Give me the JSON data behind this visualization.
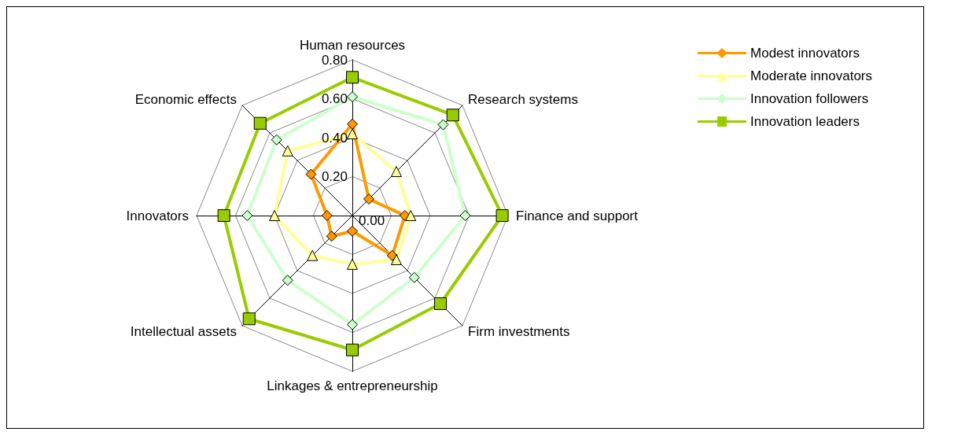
{
  "chart_data": {
    "type": "radar",
    "categories": [
      "Human resources",
      "Research systems",
      "Finance and support",
      "Firm investments",
      "Linkages & entrepreneurship",
      "Intellectual assets",
      "Innovators",
      "Economic effects"
    ],
    "ylim": [
      0,
      0.8
    ],
    "yticks": [
      {
        "value": 0,
        "label": "0.00"
      },
      {
        "value": 0.2,
        "label": "0.20"
      },
      {
        "value": 0.4,
        "label": "0.40"
      },
      {
        "value": 0.6,
        "label": "0.60"
      },
      {
        "value": 0.8,
        "label": "0.80"
      }
    ],
    "legend": "right",
    "grid": true,
    "series": [
      {
        "name": "Modest innovators",
        "color": "#ff9900",
        "marker": "diamond",
        "values": [
          0.47,
          0.12,
          0.27,
          0.29,
          0.08,
          0.15,
          0.13,
          0.3
        ]
      },
      {
        "name": "Moderate innovators",
        "color": "#ffff99",
        "marker": "triangle",
        "values": [
          0.42,
          0.32,
          0.3,
          0.32,
          0.25,
          0.29,
          0.4,
          0.47
        ]
      },
      {
        "name": "Innovation followers",
        "color": "#ccffcc",
        "marker": "diamond",
        "values": [
          0.61,
          0.66,
          0.58,
          0.45,
          0.56,
          0.47,
          0.54,
          0.55
        ]
      },
      {
        "name": "Innovation leaders",
        "color": "#99cc00",
        "marker": "square",
        "values": [
          0.71,
          0.73,
          0.77,
          0.64,
          0.69,
          0.75,
          0.66,
          0.67
        ]
      }
    ]
  }
}
